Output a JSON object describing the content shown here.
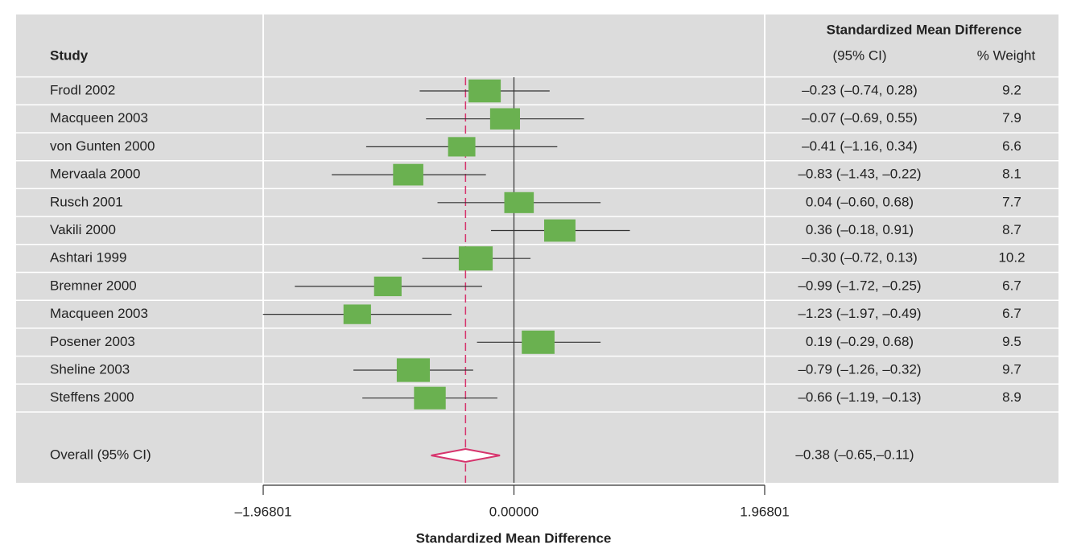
{
  "chart_data": {
    "type": "forest",
    "header_study": "Study",
    "header_effect": "Standardized Mean Difference",
    "header_ci": "(95% CI)",
    "header_weight": "% Weight",
    "xlabel": "Standardized Mean Difference",
    "xlim": [
      -1.96801,
      1.96801
    ],
    "xticks": [
      {
        "value": -1.96801,
        "label": "–1.96801"
      },
      {
        "value": 0,
        "label": "0.00000"
      },
      {
        "value": 1.96801,
        "label": "1.96801"
      }
    ],
    "null_line": 0,
    "color": "#6ab150",
    "studies": [
      "Frodl 2002",
      "Macqueen 2003",
      "von Gunten 2000",
      "Mervaala 2000",
      "Rusch 2001",
      "Vakili 2000",
      "Ashtari 1999",
      "Bremner 2000",
      "Macqueen 2003",
      "Posener 2003",
      "Sheline 2003",
      "Steffens 2000"
    ],
    "values": [
      -0.23,
      -0.07,
      -0.41,
      -0.83,
      0.04,
      0.36,
      -0.3,
      -0.99,
      -1.23,
      0.19,
      -0.79,
      -0.66
    ],
    "ci_low": [
      -0.74,
      -0.69,
      -1.16,
      -1.43,
      -0.6,
      -0.18,
      -0.72,
      -1.72,
      -1.97,
      -0.29,
      -1.26,
      -1.19
    ],
    "ci_high": [
      0.28,
      0.55,
      0.34,
      -0.22,
      0.68,
      0.91,
      0.13,
      -0.25,
      -0.49,
      0.68,
      -0.32,
      -0.13
    ],
    "value_labels": [
      "–0.23 (–0.74, 0.28)",
      "–0.07 (–0.69, 0.55)",
      "–0.41 (–1.16, 0.34)",
      "–0.83 (–1.43, –0.22)",
      "0.04 (–0.60, 0.68)",
      "0.36 (–0.18, 0.91)",
      "–0.30 (–0.72, 0.13)",
      "–0.99 (–1.72, –0.25)",
      "–1.23 (–1.97, –0.49)",
      "0.19 (–0.29, 0.68)",
      "–0.79 (–1.26, –0.32)",
      "–0.66 (–1.19, –0.13)"
    ],
    "weights": [
      9.2,
      7.9,
      6.6,
      8.1,
      7.7,
      8.7,
      10.2,
      6.7,
      6.7,
      9.5,
      9.7,
      8.9
    ],
    "overall": {
      "label": "Overall (95% CI)",
      "value": -0.38,
      "ci_low": -0.65,
      "ci_high": -0.11,
      "value_label": "–0.38 (–0.65,–0.11)",
      "color": "#d6336c"
    }
  }
}
